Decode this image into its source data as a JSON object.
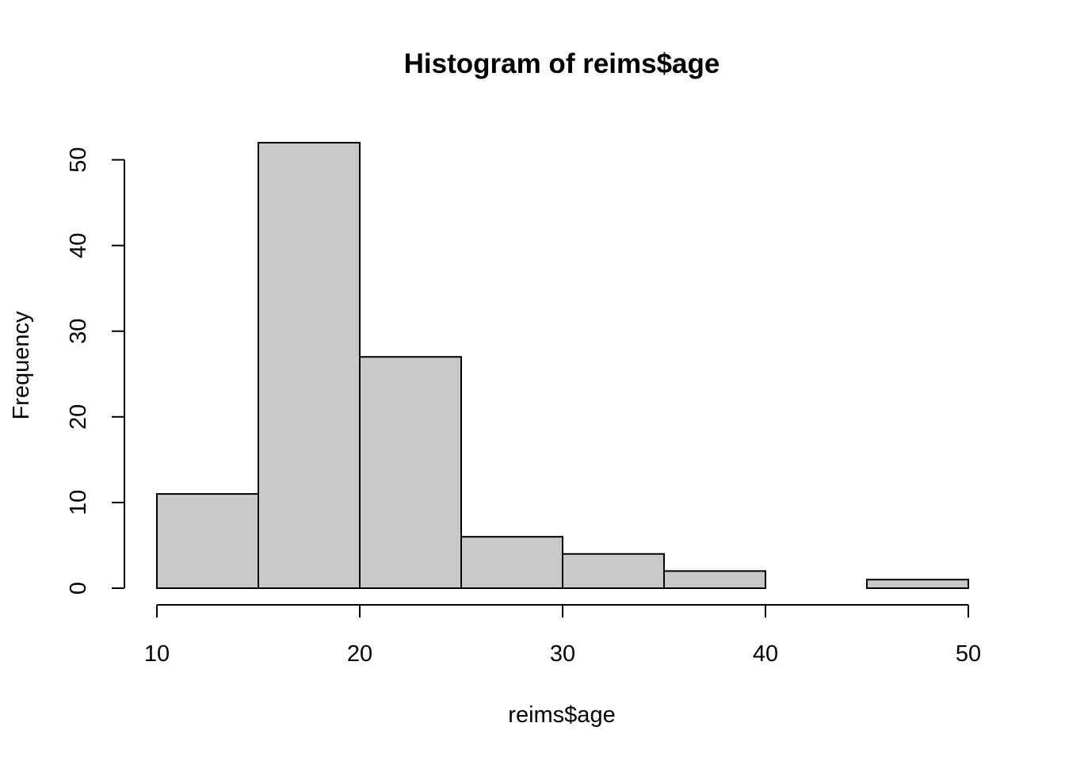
{
  "chart_data": {
    "type": "bar",
    "subtype": "histogram",
    "title": "Histogram of reims$age",
    "xlabel": "reims$age",
    "ylabel": "Frequency",
    "bins": [
      {
        "from": 10,
        "to": 15,
        "count": 11
      },
      {
        "from": 15,
        "to": 20,
        "count": 52
      },
      {
        "from": 20,
        "to": 25,
        "count": 27
      },
      {
        "from": 25,
        "to": 30,
        "count": 6
      },
      {
        "from": 30,
        "to": 35,
        "count": 4
      },
      {
        "from": 35,
        "to": 40,
        "count": 2
      },
      {
        "from": 40,
        "to": 45,
        "count": 0
      },
      {
        "from": 45,
        "to": 50,
        "count": 1
      }
    ],
    "xlim": [
      10,
      50
    ],
    "ylim": [
      0,
      52
    ],
    "x_ticks": [
      10,
      20,
      30,
      40,
      50
    ],
    "y_ticks": [
      0,
      10,
      20,
      30,
      40,
      50
    ],
    "bar_color": "#c9c9c9",
    "grid": false,
    "legend": "none"
  }
}
